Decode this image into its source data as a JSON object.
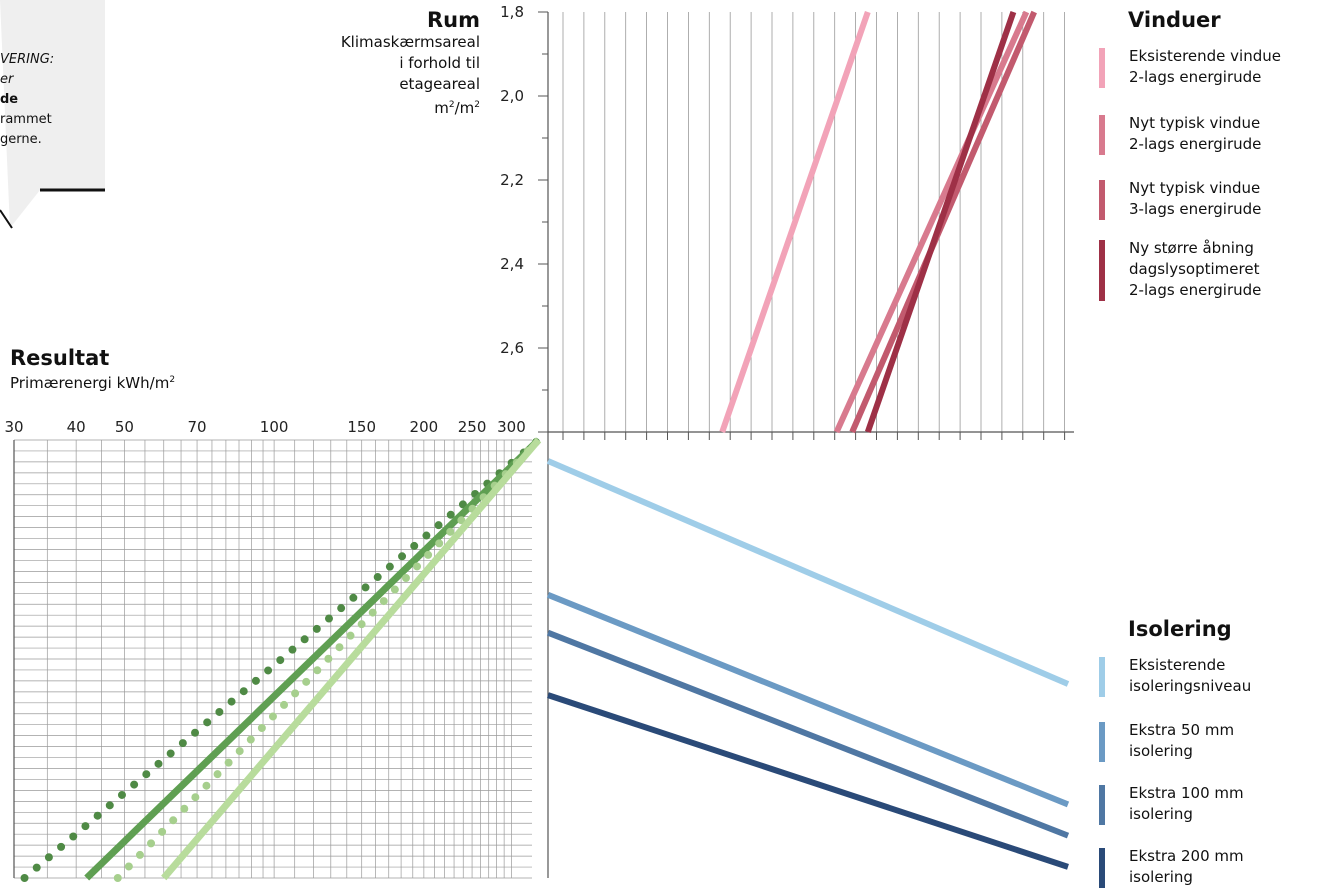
{
  "callout": {
    "lines": [
      "VERING:",
      "er",
      "de",
      "rammet",
      "gerne."
    ]
  },
  "rum": {
    "title": "Rum",
    "sub": [
      "Klimaskærmsareal",
      "i forhold til",
      "etageareal"
    ],
    "unit_base": "m",
    "unit_sup1": "2",
    "unit_mid": "/m",
    "unit_sup2": "2"
  },
  "resultat": {
    "title": "Resultat",
    "sub": "Primærenergi kWh/m",
    "sub_sup": "2"
  },
  "vinduer": {
    "title": "Vinduer",
    "items": [
      {
        "lines": [
          "Eksisterende vindue",
          "2-lags energirude"
        ],
        "color": "#f2a3b8"
      },
      {
        "lines": [
          "Nyt typisk vindue",
          "2-lags energirude"
        ],
        "color": "#d87a8e"
      },
      {
        "lines": [
          "Nyt typisk vindue",
          "3-lags energirude"
        ],
        "color": "#c25a6e"
      },
      {
        "lines": [
          "Ny større åbning",
          "dagslysoptimeret",
          "2-lags energirude"
        ],
        "color": "#9e3046"
      }
    ]
  },
  "isolering": {
    "title": "Isolering",
    "items": [
      {
        "lines": [
          "Eksisterende",
          "isoleringsniveau"
        ],
        "color": "#9fcde8"
      },
      {
        "lines": [
          "Ekstra 50 mm",
          "isolering"
        ],
        "color": "#6b9ac4"
      },
      {
        "lines": [
          "Ekstra 100 mm",
          "isolering"
        ],
        "color": "#4f77a3"
      },
      {
        "lines": [
          "Ekstra 200 mm",
          "isolering"
        ],
        "color": "#2a4a78"
      }
    ]
  },
  "chart_data": [
    {
      "type": "line",
      "panel": "Rum / Vinduer",
      "ylabel": "Klimaskærmsareal i forhold til etageareal m2/m2",
      "yticks": [
        "1,8",
        "2,0",
        "2,2",
        "2,4",
        "2,6"
      ],
      "ylim": [
        1.8,
        2.8
      ],
      "series": [
        {
          "color": "#f2a3b8",
          "points": [
            [
              0.615,
              1.8
            ],
            [
              0.335,
              2.8
            ]
          ]
        },
        {
          "color": "#d87a8e",
          "points": [
            [
              0.92,
              1.8
            ],
            [
              0.555,
              2.8
            ]
          ]
        },
        {
          "color": "#c25a6e",
          "points": [
            [
              0.935,
              1.8
            ],
            [
              0.585,
              2.8
            ]
          ]
        },
        {
          "color": "#9e3046",
          "points": [
            [
              0.895,
              1.8
            ],
            [
              0.615,
              2.8
            ]
          ]
        }
      ]
    },
    {
      "type": "line",
      "panel": "Isolering",
      "series": [
        {
          "color": "#9fcde8",
          "points": [
            [
              0.0,
              0.065
            ],
            [
              1.0,
              0.565
            ]
          ]
        },
        {
          "color": "#6b9ac4",
          "points": [
            [
              0.0,
              0.365
            ],
            [
              1.0,
              0.835
            ]
          ]
        },
        {
          "color": "#4f77a3",
          "points": [
            [
              0.0,
              0.45
            ],
            [
              1.0,
              0.905
            ]
          ]
        },
        {
          "color": "#2a4a78",
          "points": [
            [
              0.0,
              0.59
            ],
            [
              1.0,
              0.975
            ]
          ]
        }
      ]
    },
    {
      "type": "line",
      "panel": "Resultat",
      "xlabel": "Primærenergi kWh/m2",
      "xscale": "log",
      "xticks": [
        "30",
        "40",
        "50",
        "70",
        "100",
        "150",
        "200",
        "250",
        "300"
      ],
      "xtick_values": [
        30,
        40,
        50,
        70,
        100,
        150,
        200,
        250,
        300
      ],
      "series": [
        {
          "color": "#4f8a45",
          "style": "dotted",
          "points": [
            [
              31.5,
              1.0
            ],
            [
              340,
              0.0
            ]
          ]
        },
        {
          "color": "#5f9f52",
          "style": "solid",
          "points": [
            [
              42,
              1.0
            ],
            [
              340,
              0.0
            ]
          ]
        },
        {
          "color": "#a6cf8d",
          "style": "dotted",
          "points": [
            [
              48.5,
              1.0
            ],
            [
              340,
              0.0
            ]
          ]
        },
        {
          "color": "#b8dc9c",
          "style": "solid",
          "points": [
            [
              60,
              1.0
            ],
            [
              340,
              0.0
            ]
          ]
        }
      ]
    }
  ]
}
